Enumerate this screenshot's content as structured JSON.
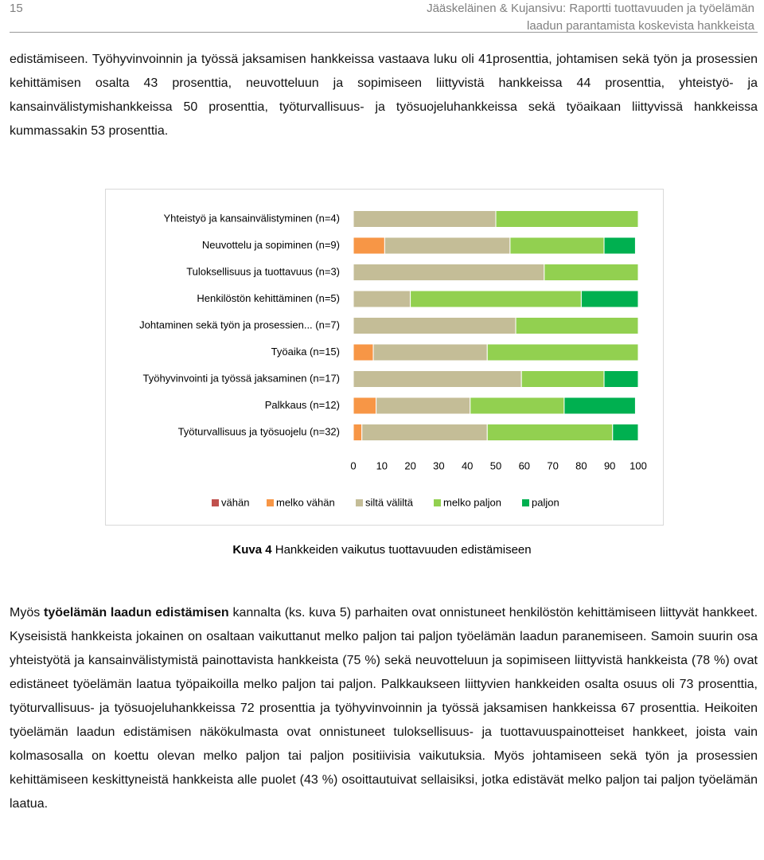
{
  "header": {
    "page_number": "15",
    "running_title": [
      "Jääskeläinen & Kujansivu: Raportti tuottavuuden ja työelämän",
      "laadun parantamista koskevista hankkeista"
    ]
  },
  "paragraphs": [
    [
      "edistämiseen. Työhyvinvoinnin ja työssä jaksamisen hankkeissa vastaava luku oli 41prosenttia, johtamisen sekä työn ja prosessien kehittämisen osalta 43 prosenttia, neuvotteluun ja sopimiseen liittyvistä hankkeissa 44 prosenttia, yhteistyö- ja kansainvälistymishankkeissa 50 prosenttia, työturvallisuus- ja työsuojeluhankkeissa sekä työaikaan liittyvissä hankkeissa kummassakin 53 prosenttia."
    ],
    [
      "Myös ",
      "työelämän laadun edistämisen",
      " kannalta (ks. kuva 5) parhaiten ovat onnistuneet henkilöstön kehittämiseen liittyvät hankkeet. Kyseisistä hankkeista jokainen on osaltaan vaikuttanut melko paljon tai paljon työelämän laadun paranemiseen. Samoin suurin osa yhteistyötä ja kansainvälistymistä painottavista hankkeista (75 %) sekä neuvotteluun ja sopimiseen liittyvistä hankkeista (78 %) ovat edistäneet työelämän laatua työpaikoilla melko paljon tai paljon. Palkkaukseen liittyvien hankkeiden osalta osuus oli 73 prosenttia, työturvallisuus- ja työsuojeluhankkeissa 72 prosenttia ja työhyvinvoinnin ja työssä jaksamisen hankkeissa 67 prosenttia. Heikoiten työelämän laadun edistämisen näkökulmasta ovat onnistuneet tuloksellisuus- ja tuottavuuspainotteiset hankkeet, joista vain kolmasosalla on koettu olevan melko paljon tai paljon positiivisia vaikutuksia. Myös johtamiseen sekä työn ja prosessien kehittämiseen keskittyneistä hankkeista alle puolet (43 %) osoittautuivat sellaisiksi, jotka edistävät melko paljon tai paljon työelämän laatua."
    ]
  ],
  "caption": {
    "label": "Kuva 4",
    "text": " Hankkeiden vaikutus tuottavuuden edistämiseen"
  },
  "chart_data": {
    "type": "bar",
    "orientation": "horizontal",
    "stacked": true,
    "categories": [
      "Yhteistyö ja kansainvälistyminen (n=4)",
      "Neuvottelu ja sopiminen (n=9)",
      "Tuloksellisuus ja tuottavuus (n=3)",
      "Henkilöstön kehittäminen (n=5)",
      "Johtaminen sekä työn ja prosessien... (n=7)",
      "Työaika (n=15)",
      "Työhyvinvointi ja työssä jaksaminen (n=17)",
      "Palkkaus (n=12)",
      "Työturvallisuus ja työsuojelu (n=32)"
    ],
    "series": [
      {
        "name": "vähän",
        "color": "#c0504d",
        "values": [
          0,
          0,
          0,
          0,
          0,
          0,
          0,
          0,
          0
        ]
      },
      {
        "name": "melko vähän",
        "color": "#f79646",
        "values": [
          0,
          11,
          0,
          0,
          0,
          7,
          0,
          8,
          3
        ]
      },
      {
        "name": "siltä väliltä",
        "color": "#c4bd97",
        "values": [
          50,
          44,
          67,
          20,
          57,
          40,
          59,
          33,
          44
        ]
      },
      {
        "name": "melko paljon",
        "color": "#92d050",
        "values": [
          50,
          33,
          33,
          60,
          43,
          53,
          29,
          33,
          44
        ]
      },
      {
        "name": "paljon",
        "color": "#00b050",
        "values": [
          0,
          11,
          0,
          20,
          0,
          0,
          12,
          25,
          9
        ]
      }
    ],
    "xlim": [
      0,
      100
    ],
    "xticks": [
      0,
      10,
      20,
      30,
      40,
      50,
      60,
      70,
      80,
      90,
      100
    ],
    "legend": "bottom"
  }
}
